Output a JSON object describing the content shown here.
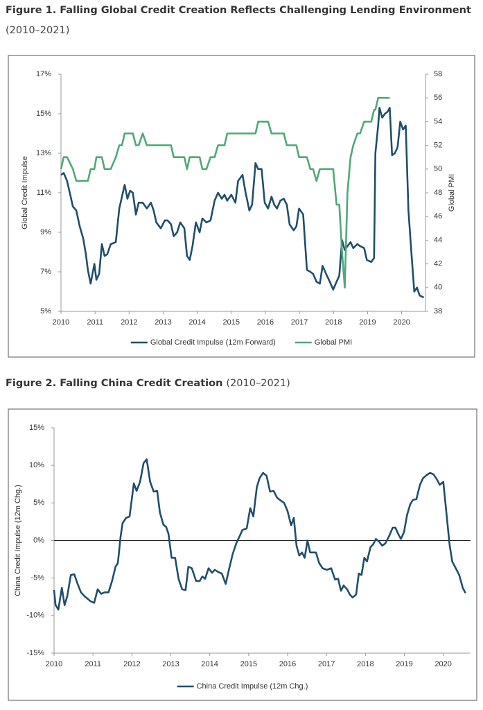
{
  "chart_data": [
    {
      "type": "line",
      "title": "Figure 1. Falling Global Credit Creation Reflects Challenging Lending Environment",
      "subtitle": "(2010–2021)",
      "y_label": "Global Credit Impulse",
      "y2_label": "Global PMI",
      "x": [
        2010,
        2010.08,
        2010.18,
        2010.35,
        2010.45,
        2010.55,
        2010.65,
        2010.73,
        2010.79,
        2010.87,
        2010.98,
        2011.04,
        2011.12,
        2011.2,
        2011.28,
        2011.36,
        2011.46,
        2011.61,
        2011.71,
        2011.79,
        2011.87,
        2011.95,
        2012.03,
        2012.11,
        2012.2,
        2012.28,
        2012.4,
        2012.52,
        2012.64,
        2012.72,
        2012.8,
        2012.93,
        2013.05,
        2013.13,
        2013.23,
        2013.31,
        2013.41,
        2013.5,
        2013.62,
        2013.7,
        2013.78,
        2013.86,
        2013.96,
        2014.07,
        2014.15,
        2014.27,
        2014.39,
        2014.51,
        2014.61,
        2014.72,
        2014.8,
        2014.88,
        2015,
        2015.12,
        2015.2,
        2015.33,
        2015.41,
        2015.53,
        2015.61,
        2015.71,
        2015.79,
        2015.89,
        2015.98,
        2016.08,
        2016.18,
        2016.26,
        2016.34,
        2016.44,
        2016.54,
        2016.63,
        2016.71,
        2016.83,
        2016.91,
        2016.99,
        2017.11,
        2017.22,
        2017.32,
        2017.4,
        2017.5,
        2017.6,
        2017.68,
        2017.78,
        2017.89,
        2017.99,
        2018.09,
        2018.17,
        2018.25,
        2018.33,
        2018.41,
        2018.5,
        2018.58,
        2018.7,
        2018.78,
        2018.9,
        2018.98,
        2019.11,
        2019.19,
        2019.23,
        2019.31,
        2019.35,
        2019.43,
        2019.51,
        2019.59,
        2019.65,
        2019.72,
        2019.8,
        2019.88,
        2019.96,
        2020.04,
        2020.12,
        2020.2,
        2020.28,
        2020.37,
        2020.45,
        2020.53,
        2020.65
      ],
      "series": [
        {
          "name": "Global Credit Impulse (12m Forward)",
          "color": "#1f4e6b",
          "values": [
            11.9,
            12.0,
            11.6,
            10.3,
            10.1,
            9.3,
            8.7,
            7.9,
            7.1,
            6.4,
            7.4,
            6.6,
            6.9,
            8.4,
            7.8,
            7.9,
            8.4,
            8.5,
            10.2,
            10.8,
            11.4,
            10.7,
            11.1,
            11.0,
            9.9,
            10.5,
            10.5,
            10.2,
            10.5,
            10.1,
            9.5,
            9.2,
            9.6,
            9.6,
            9.4,
            8.8,
            9.0,
            9.5,
            9.2,
            7.8,
            7.6,
            8.3,
            9.5,
            9.0,
            9.7,
            9.5,
            9.6,
            10.6,
            11.0,
            10.7,
            10.9,
            10.6,
            10.9,
            10.5,
            11.6,
            11.9,
            11.1,
            10.1,
            10.4,
            12.5,
            12.2,
            12.2,
            10.5,
            10.2,
            10.8,
            10.4,
            10.2,
            10.6,
            10.7,
            10.4,
            9.4,
            9.1,
            9.3,
            10.2,
            9.9,
            7.1,
            7.0,
            6.9,
            6.5,
            6.4,
            7.3,
            6.9,
            6.5,
            6.1,
            6.5,
            6.8,
            8.6,
            8.1,
            8.3,
            8.5,
            8.2,
            8.4,
            8.3,
            8.2,
            7.6,
            7.5,
            7.7,
            13.0,
            14.4,
            15.3,
            14.8,
            15.0,
            15.1,
            15.3,
            12.9,
            13.0,
            13.3,
            14.6,
            14.2,
            14.4,
            10.1,
            8.1,
            6.0,
            6.2,
            5.8,
            5.7
          ]
        },
        {
          "name": "Global PMI",
          "color": "#4fa877",
          "axis": "y2",
          "values": [
            50,
            51,
            51,
            50,
            49,
            49,
            49,
            49,
            49,
            50,
            50,
            51,
            51,
            51,
            50,
            50,
            50,
            51,
            52,
            52,
            53,
            53,
            53,
            53,
            52,
            52,
            53,
            52,
            52,
            52,
            52,
            52,
            52,
            52,
            52,
            51,
            51,
            51,
            51,
            50,
            51,
            51,
            51,
            51,
            50,
            50,
            51,
            51,
            52,
            52,
            52,
            53,
            53,
            53,
            53,
            53,
            53,
            53,
            53,
            53,
            54,
            54,
            54,
            54,
            53,
            53,
            53,
            53,
            53,
            52,
            52,
            52,
            52,
            51,
            51,
            51,
            50,
            50,
            49,
            50,
            50,
            50,
            50,
            50,
            47,
            47,
            43,
            40,
            48,
            51,
            52,
            53,
            53,
            54,
            54,
            54,
            55,
            55,
            56,
            56,
            56,
            56,
            56,
            56,
            null,
            null,
            null,
            null,
            null,
            null,
            null,
            null,
            null,
            null,
            null,
            null
          ]
        }
      ],
      "xlim": [
        2010,
        2020.7
      ],
      "xticks": [
        2010,
        2011,
        2012,
        2013,
        2014,
        2015,
        2016,
        2017,
        2018,
        2019,
        2020
      ],
      "ylim": [
        5,
        17
      ],
      "yticks": [
        {
          "value": 5,
          "label": "5%"
        },
        {
          "value": 7,
          "label": "7%"
        },
        {
          "value": 9,
          "label": "9%"
        },
        {
          "value": 11,
          "label": "11%"
        },
        {
          "value": 13,
          "label": "13%"
        },
        {
          "value": 15,
          "label": "15%"
        },
        {
          "value": 17,
          "label": "17%"
        }
      ],
      "y2lim": [
        38,
        58
      ],
      "y2ticks": [
        38,
        40,
        42,
        44,
        46,
        48,
        50,
        52,
        54,
        56,
        58
      ],
      "legend": "bottom"
    },
    {
      "type": "line",
      "title": "Figure 2. Falling China Credit Creation",
      "subtitle": "(2010–2021)",
      "y_label": "China Credit Impulse (12m Chg.)",
      "x": [
        2010,
        2010.04,
        2010.11,
        2010.2,
        2010.27,
        2010.34,
        2010.43,
        2010.52,
        2010.6,
        2010.69,
        2010.78,
        2010.87,
        2010.94,
        2011.03,
        2011.12,
        2011.21,
        2011.3,
        2011.4,
        2011.49,
        2011.58,
        2011.64,
        2011.71,
        2011.76,
        2011.85,
        2011.94,
        2012.05,
        2012.12,
        2012.21,
        2012.3,
        2012.38,
        2012.47,
        2012.56,
        2012.65,
        2012.72,
        2012.81,
        2012.88,
        2012.94,
        2013.02,
        2013.11,
        2013.2,
        2013.29,
        2013.38,
        2013.45,
        2013.54,
        2013.65,
        2013.74,
        2013.81,
        2013.88,
        2013.97,
        2014.06,
        2014.13,
        2014.22,
        2014.31,
        2014.41,
        2014.5,
        2014.59,
        2014.68,
        2014.77,
        2014.84,
        2014.95,
        2015.04,
        2015.12,
        2015.21,
        2015.28,
        2015.37,
        2015.46,
        2015.55,
        2015.64,
        2015.73,
        2015.8,
        2015.91,
        2016,
        2016.09,
        2016.16,
        2016.23,
        2016.3,
        2016.37,
        2016.44,
        2016.51,
        2016.58,
        2016.65,
        2016.73,
        2016.81,
        2016.9,
        2017.01,
        2017.12,
        2017.22,
        2017.3,
        2017.37,
        2017.44,
        2017.53,
        2017.6,
        2017.67,
        2017.76,
        2017.83,
        2017.9,
        2017.97,
        2018.04,
        2018.13,
        2018.2,
        2018.27,
        2018.36,
        2018.43,
        2018.51,
        2018.61,
        2018.7,
        2018.77,
        2018.84,
        2018.91,
        2018.99,
        2019.07,
        2019.15,
        2019.22,
        2019.31,
        2019.4,
        2019.48,
        2019.57,
        2019.66,
        2019.75,
        2019.84,
        2019.91,
        2020,
        2020.09,
        2020.16,
        2020.23,
        2020.32,
        2020.41,
        2020.5,
        2020.57
      ],
      "series": [
        {
          "name": "China Credit Impulse (12m Chg.)",
          "color": "#1f4e6b",
          "values": [
            -6.6,
            -8.6,
            -9.2,
            -6.3,
            -8.6,
            -7.4,
            -4.6,
            -4.5,
            -5.7,
            -6.9,
            -7.4,
            -7.8,
            -8.1,
            -8.3,
            -6.5,
            -7.1,
            -6.9,
            -6.9,
            -5.4,
            -3.5,
            -3.0,
            0.5,
            2.3,
            3.0,
            3.2,
            7.6,
            6.6,
            7.8,
            10.3,
            10.8,
            7.8,
            6.5,
            6.6,
            3.7,
            2.1,
            1.8,
            0.9,
            -2.3,
            -2.3,
            -5.1,
            -6.5,
            -6.6,
            -3.5,
            -3.7,
            -5.4,
            -5.4,
            -4.8,
            -5.1,
            -3.7,
            -4.3,
            -3.9,
            -4.2,
            -4.4,
            -5.8,
            -3.7,
            -1.8,
            -0.4,
            0.6,
            1.4,
            1.6,
            4.3,
            3.2,
            7.1,
            8.3,
            9.0,
            8.6,
            6.5,
            6.6,
            5.7,
            5.4,
            5.0,
            3.9,
            2.0,
            3.0,
            -0.7,
            -2.0,
            -1.6,
            -2.3,
            0,
            -1.6,
            -1.6,
            -1.6,
            -3.0,
            -3.7,
            -3.9,
            -3.7,
            -5.2,
            -5.1,
            -6.7,
            -6.0,
            -6.5,
            -7.2,
            -7.6,
            -7.2,
            -4.4,
            -4.6,
            -2.3,
            -2.8,
            -0.9,
            -0.5,
            0.2,
            -0.2,
            -0.7,
            -0.4,
            0.6,
            1.7,
            1.7,
            0.9,
            0.2,
            1.1,
            3.4,
            4.8,
            5.4,
            5.5,
            7.4,
            8.3,
            8.7,
            9.0,
            8.8,
            8.1,
            7.4,
            7.8,
            3.2,
            -0.5,
            -2.8,
            -3.7,
            -4.6,
            -6.3,
            -7.0
          ]
        }
      ],
      "xlim": [
        2010,
        2020.7
      ],
      "xticks": [
        2010,
        2011,
        2012,
        2013,
        2014,
        2015,
        2016,
        2017,
        2018,
        2019,
        2020
      ],
      "ylim": [
        -15,
        15
      ],
      "yticks": [
        {
          "value": -15,
          "label": "-15%"
        },
        {
          "value": -10,
          "label": "-10%"
        },
        {
          "value": -5,
          "label": "-5%"
        },
        {
          "value": 0,
          "label": "0%"
        },
        {
          "value": 5,
          "label": "5%"
        },
        {
          "value": 10,
          "label": "10%"
        },
        {
          "value": 15,
          "label": "15%"
        }
      ],
      "zero_line": true,
      "legend": "bottom"
    }
  ]
}
